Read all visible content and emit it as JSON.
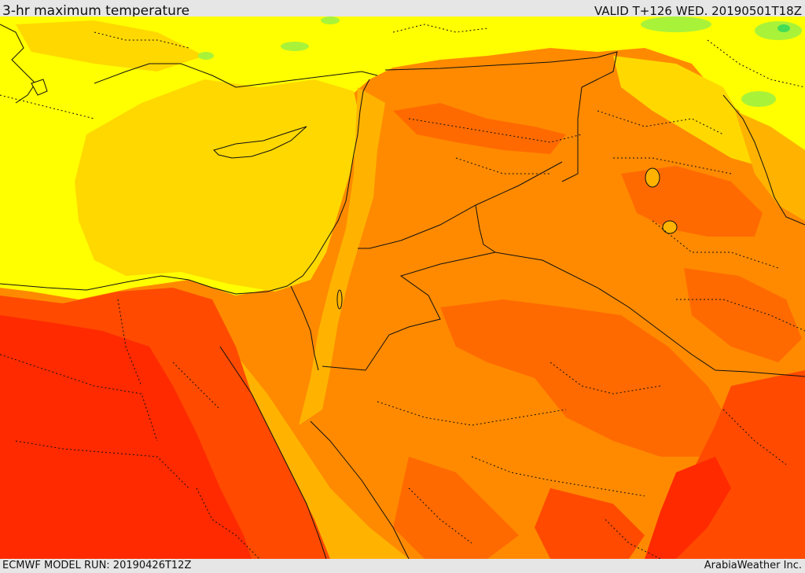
{
  "header": {
    "title": "3-hr maximum temperature",
    "valid": "VALID T+126 WED. 20190501T18Z"
  },
  "footer": {
    "model_run": "ECMWF MODEL RUN: 20190426T12Z",
    "credit": "ArabiaWeather Inc."
  },
  "palette": {
    "green": "#44dd55",
    "greenyellow": "#a9f23a",
    "yellow": "#ffff00",
    "gold": "#ffd800",
    "amber": "#ffb300",
    "orange": "#ff8a00",
    "darkorange": "#ff6a00",
    "redorange": "#ff4a00",
    "red": "#ff2a00",
    "border": "#111111"
  }
}
